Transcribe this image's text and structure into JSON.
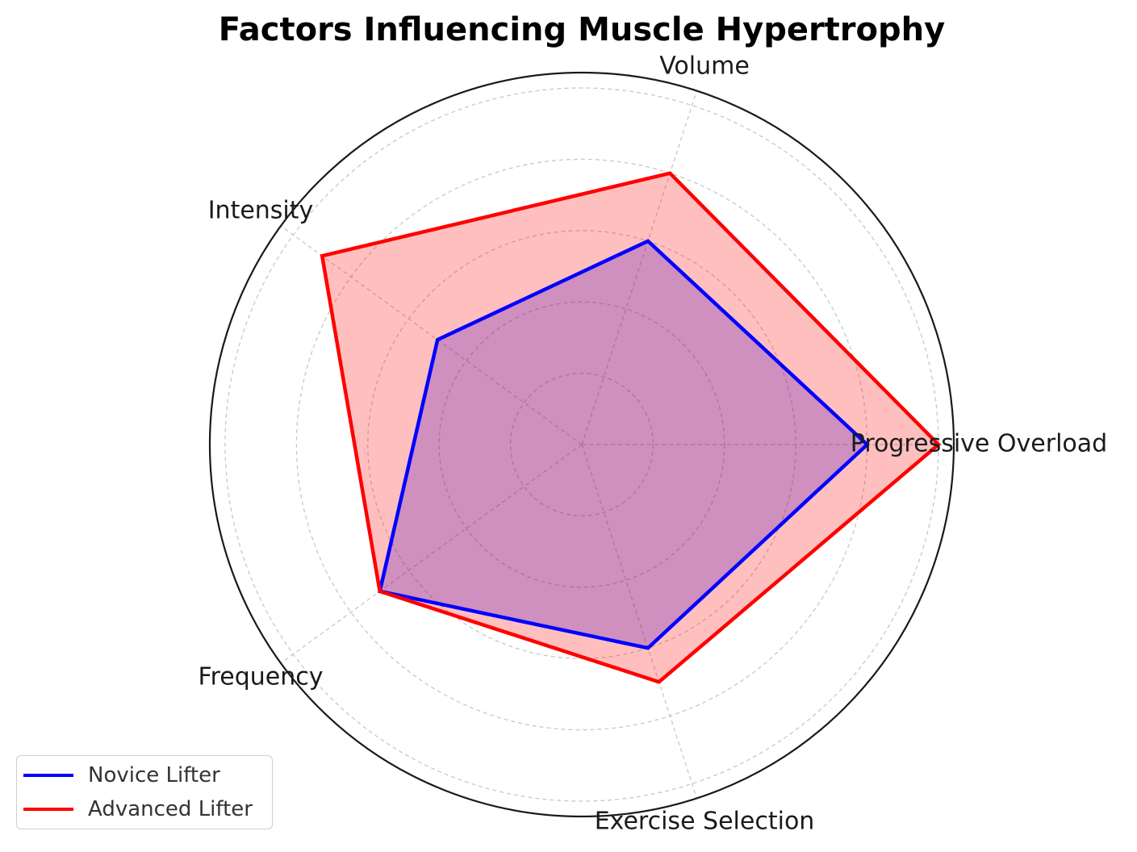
{
  "chart_data": {
    "type": "radar",
    "title": "Factors Influencing Muscle Hypertrophy",
    "categories": [
      "Progressive Overload",
      "Volume",
      "Intensity",
      "Frequency",
      "Exercise Selection"
    ],
    "series": [
      {
        "name": "Novice Lifter",
        "values": [
          8,
          6,
          5,
          7,
          6
        ],
        "color": "#0000ff",
        "fill": "#0000ff"
      },
      {
        "name": "Advanced Lifter",
        "values": [
          10,
          8,
          9,
          7,
          7
        ],
        "color": "#ff0000",
        "fill": "#ff0000"
      }
    ],
    "rlim": [
      0,
      10
    ],
    "grid": true,
    "legend_position": "lower-left"
  }
}
